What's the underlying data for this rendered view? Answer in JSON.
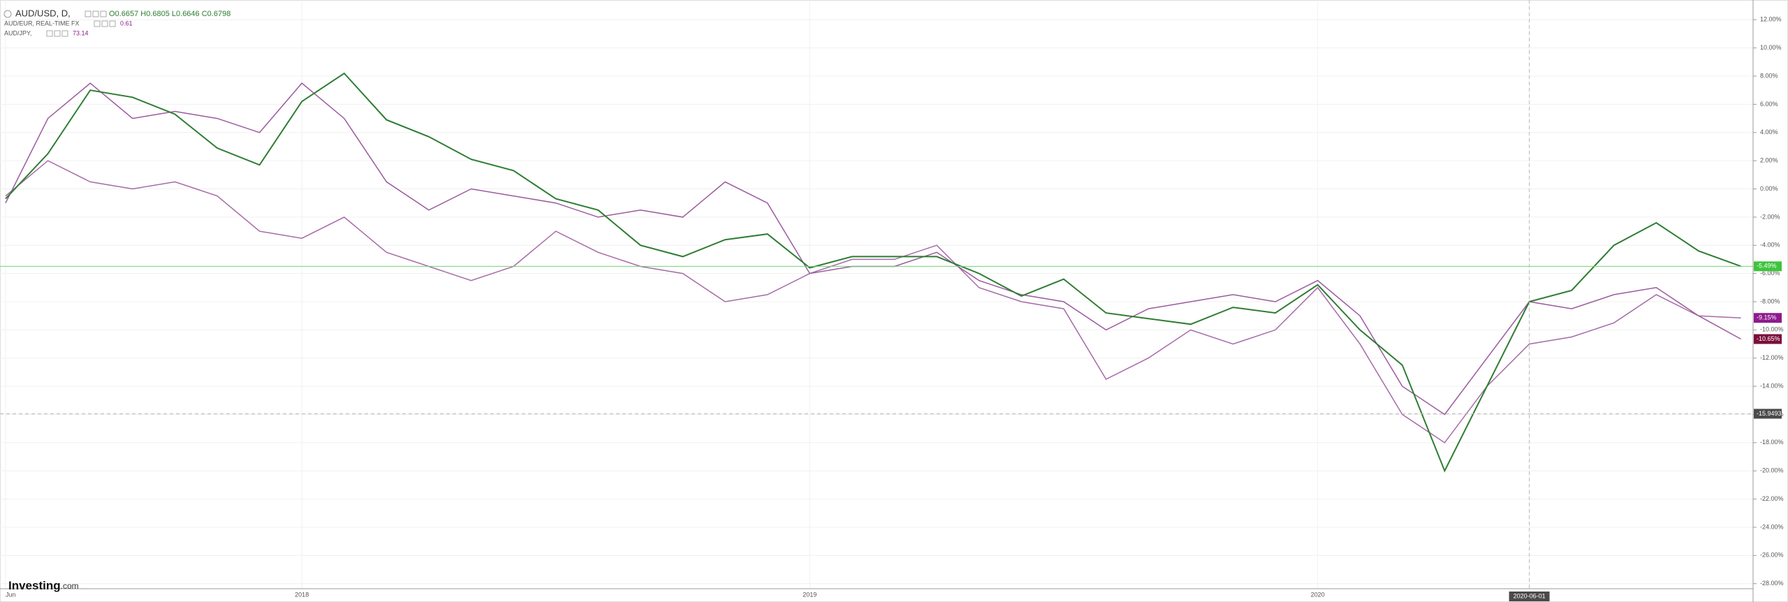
{
  "chart_data": {
    "type": "line",
    "categories": [
      "Jun",
      null,
      null,
      null,
      null,
      null,
      null,
      "2018",
      null,
      null,
      null,
      null,
      null,
      null,
      null,
      null,
      null,
      null,
      null,
      "2019",
      null,
      null,
      null,
      null,
      null,
      null,
      null,
      null,
      null,
      null,
      null,
      "2020",
      null,
      null,
      null,
      null,
      "2020-06-01",
      null,
      null,
      null,
      null,
      null
    ],
    "series": [
      {
        "name": "AUD/USD, D,",
        "quote": "O0.6657 H0.6805 L0.6646 C0.6798",
        "color": "#2e7d32",
        "label_color": "#3ec43e",
        "values": [
          -0.7,
          2.5,
          7,
          6.5,
          5.3,
          2.9,
          1.7,
          6.2,
          8.2,
          4.9,
          3.7,
          2.1,
          1.3,
          -0.7,
          -1.5,
          -4,
          -4.8,
          -3.6,
          -3.2,
          -5.6,
          -4.8,
          -4.8,
          -4.8,
          -6,
          -7.6,
          -6.4,
          -8.8,
          -9.2,
          -9.6,
          -8.4,
          -8.8,
          -6.8,
          -10,
          -12.5,
          -20,
          -14,
          -8,
          -7.2,
          -4,
          -2.4,
          -4.4,
          -5.49
        ],
        "value_labels": [
          null,
          null,
          null,
          null,
          null,
          null,
          null,
          null,
          null,
          null,
          null,
          null,
          null,
          null,
          null,
          null,
          null,
          null,
          null,
          null,
          null,
          null,
          null,
          null,
          null,
          null,
          null,
          null,
          null,
          null,
          null,
          null,
          null,
          null,
          null,
          null,
          null,
          null,
          null,
          null,
          null,
          "-5.49%"
        ]
      },
      {
        "name": "AUD/EUR, REAL-TIME FX",
        "quote": "0.61",
        "color": "#9b5a9e",
        "label_color": "#7b0f3a",
        "values": [
          -1.0,
          5,
          7.5,
          5,
          5.5,
          5,
          4,
          7.5,
          5,
          0.5,
          -1.5,
          0,
          -0.5,
          -1,
          -2,
          -1.5,
          -2,
          0.5,
          -1,
          -6,
          -5.5,
          -5.5,
          -4.5,
          -6.5,
          -7.5,
          -8,
          -10,
          -8.5,
          -8,
          -7.5,
          -8,
          -6.5,
          -9,
          -14,
          -16,
          -12,
          -8,
          -8.5,
          -7.5,
          -7,
          -9,
          -10.65
        ],
        "value_labels": [
          null,
          null,
          null,
          null,
          null,
          null,
          null,
          null,
          null,
          null,
          null,
          null,
          null,
          null,
          null,
          null,
          null,
          null,
          null,
          null,
          null,
          null,
          null,
          null,
          null,
          null,
          null,
          null,
          null,
          null,
          null,
          null,
          null,
          null,
          null,
          null,
          null,
          null,
          null,
          null,
          null,
          "-10.65%"
        ]
      },
      {
        "name": "AUD/JPY,",
        "quote": "73.14",
        "color": "#a66aa8",
        "label_color": "#8e1a8e",
        "values": [
          -0.5,
          2,
          0.5,
          0,
          0.5,
          -0.5,
          -3,
          -3.5,
          -2,
          -4.5,
          -5.5,
          -6.5,
          -5.5,
          -3,
          -4.5,
          -5.5,
          -6,
          -8,
          -7.5,
          -6,
          -5,
          -5,
          -4,
          -7,
          -8,
          -8.5,
          -13.5,
          -12,
          -10,
          -11,
          -10,
          -7,
          -11,
          -16,
          -18,
          -14,
          -11,
          -10.5,
          -9.5,
          -7.5,
          -9,
          -9.15
        ],
        "value_labels": [
          null,
          null,
          null,
          null,
          null,
          null,
          null,
          null,
          null,
          null,
          null,
          null,
          null,
          null,
          null,
          null,
          null,
          null,
          null,
          null,
          null,
          null,
          null,
          null,
          null,
          null,
          null,
          null,
          null,
          null,
          null,
          null,
          null,
          null,
          null,
          null,
          null,
          null,
          null,
          null,
          null,
          "-9.15%"
        ]
      }
    ],
    "ylim": [
      -28.36,
      13.4
    ],
    "yticks": [
      {
        "value": 12,
        "label": "12.00%"
      },
      {
        "value": 10,
        "label": "10.00%"
      },
      {
        "value": 8,
        "label": "8.00%"
      },
      {
        "value": 6,
        "label": "6.00%"
      },
      {
        "value": 4,
        "label": "4.00%"
      },
      {
        "value": 2,
        "label": "2.00%"
      },
      {
        "value": 0,
        "label": "0.00%"
      },
      {
        "value": -2,
        "label": "-2.00%"
      },
      {
        "value": -4,
        "label": "-4.00%"
      },
      {
        "value": -6,
        "label": "-6.00%"
      },
      {
        "value": -8,
        "label": "-8.00%"
      },
      {
        "value": -10,
        "label": "-10.00%"
      },
      {
        "value": -12,
        "label": "-12.00%"
      },
      {
        "value": -14,
        "label": "-14.00%"
      },
      {
        "value": -16,
        "label": "-16.00%"
      },
      {
        "value": -18,
        "label": "-18.00%"
      },
      {
        "value": -20,
        "label": "-20.00%"
      },
      {
        "value": -22,
        "label": "-22.00%"
      },
      {
        "value": -24,
        "label": "-24.00%"
      },
      {
        "value": -26,
        "label": "-26.00%"
      },
      {
        "value": -28,
        "label": "-28.00%"
      }
    ],
    "crosshair_y": {
      "value": -15.9493,
      "label": "-15.9493"
    },
    "crosshair_x": 36,
    "grid": true,
    "logo": "Investing",
    "logo_suffix": ".com"
  }
}
